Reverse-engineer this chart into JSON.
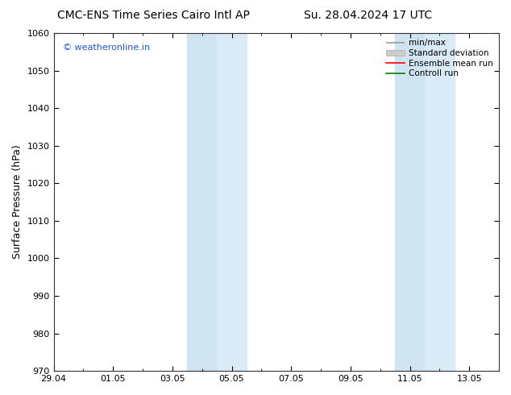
{
  "title_left": "CMC-ENS Time Series Cairo Intl AP",
  "title_right": "Su. 28.04.2024 17 UTC",
  "ylabel": "Surface Pressure (hPa)",
  "ylim": [
    970,
    1060
  ],
  "yticks": [
    970,
    980,
    990,
    1000,
    1010,
    1020,
    1030,
    1040,
    1050,
    1060
  ],
  "x_tick_labels": [
    "29.04",
    "01.05",
    "03.05",
    "05.05",
    "07.05",
    "09.05",
    "11.05",
    "13.05"
  ],
  "x_tick_positions": [
    0,
    2,
    4,
    6,
    8,
    10,
    12,
    14
  ],
  "xlim": [
    0,
    15
  ],
  "shaded_bands": [
    {
      "x_start": 4.5,
      "x_end": 5.5,
      "shade": "#cfe3f0"
    },
    {
      "x_start": 5.5,
      "x_end": 6.5,
      "shade": "#daeaf6"
    },
    {
      "x_start": 11.5,
      "x_end": 12.5,
      "shade": "#cfe3f0"
    },
    {
      "x_start": 12.5,
      "x_end": 13.5,
      "shade": "#daeaf6"
    }
  ],
  "shade_color": "#d6e8f5",
  "background_color": "#ffffff",
  "grid_color": "#cccccc",
  "watermark_text": "© weatheronline.in",
  "watermark_color": "#1a56db",
  "legend_items": [
    {
      "label": "min/max",
      "color": "#aaaaaa",
      "style": "minmax"
    },
    {
      "label": "Standard deviation",
      "color": "#cccccc",
      "style": "band"
    },
    {
      "label": "Ensemble mean run",
      "color": "#ff0000",
      "style": "line"
    },
    {
      "label": "Controll run",
      "color": "#008000",
      "style": "line"
    }
  ],
  "title_fontsize": 10,
  "tick_fontsize": 8,
  "ylabel_fontsize": 9,
  "watermark_fontsize": 8,
  "legend_fontsize": 7.5
}
